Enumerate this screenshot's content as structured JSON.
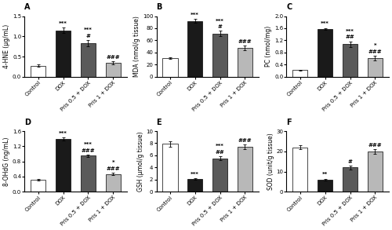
{
  "chart_data": [
    {
      "type": "bar",
      "title": "A",
      "ylabel": "4-HNE (μg/mL)",
      "categories": [
        "Control",
        "DOX",
        "Pris 0.5 + DOX",
        "Pris 1 + DOX"
      ],
      "values": [
        0.27,
        1.15,
        0.83,
        0.35
      ],
      "errors": [
        0.03,
        0.06,
        0.08,
        0.04
      ],
      "colors": [
        "#ffffff",
        "#1a1a1a",
        "#5a5a5a",
        "#b8b8b8"
      ],
      "ylim": [
        0,
        1.5
      ],
      "yticks": [
        0.0,
        0.5,
        1.0,
        1.5
      ],
      "annotations": [
        {
          "category": "DOX",
          "lines": [
            "***"
          ]
        },
        {
          "category": "Pris 0.5 + DOX",
          "lines": [
            "***",
            "#"
          ]
        },
        {
          "category": "Pris 1 + DOX",
          "lines": [
            "###"
          ]
        }
      ]
    },
    {
      "type": "bar",
      "title": "B",
      "ylabel": "MDA (nmol/g tissue)",
      "categories": [
        "Control",
        "DOX",
        "Pris 0.5 + DOX",
        "Pris 1 + DOX"
      ],
      "values": [
        31,
        92,
        71,
        48
      ],
      "errors": [
        1.5,
        3.5,
        4.5,
        4.0
      ],
      "colors": [
        "#ffffff",
        "#1a1a1a",
        "#5a5a5a",
        "#b8b8b8"
      ],
      "ylim": [
        0,
        100
      ],
      "yticks": [
        0,
        20,
        40,
        60,
        80,
        100
      ],
      "annotations": [
        {
          "category": "DOX",
          "lines": [
            "***"
          ]
        },
        {
          "category": "Pris 0.5 + DOX",
          "lines": [
            "***",
            "#"
          ]
        },
        {
          "category": "Pris 1 + DOX",
          "lines": [
            "###"
          ]
        }
      ]
    },
    {
      "type": "bar",
      "title": "C",
      "ylabel": "PC (nmol/mg)",
      "categories": [
        "Control",
        "DOX",
        "Pris 0.5 + DOX",
        "Pris 1 + DOX"
      ],
      "values": [
        0.22,
        1.58,
        1.08,
        0.62
      ],
      "errors": [
        0.02,
        0.03,
        0.09,
        0.07
      ],
      "colors": [
        "#ffffff",
        "#1a1a1a",
        "#5a5a5a",
        "#b8b8b8"
      ],
      "ylim": [
        0,
        2.0
      ],
      "yticks": [
        0.0,
        0.4,
        0.8,
        1.2,
        1.6,
        2.0
      ],
      "annotations": [
        {
          "category": "DOX",
          "lines": [
            "***"
          ]
        },
        {
          "category": "Pris 0.5 + DOX",
          "lines": [
            "***",
            "##"
          ]
        },
        {
          "category": "Pris 1 + DOX",
          "lines": [
            "*",
            "###"
          ]
        }
      ]
    },
    {
      "type": "bar",
      "title": "D",
      "ylabel": "8-OHdG (ng/mL)",
      "categories": [
        "Control",
        "DOX",
        "Pris 0.5 + DOX",
        "Pris 1 + DOX"
      ],
      "values": [
        0.32,
        1.4,
        0.95,
        0.47
      ],
      "errors": [
        0.02,
        0.04,
        0.03,
        0.03
      ],
      "colors": [
        "#ffffff",
        "#1a1a1a",
        "#5a5a5a",
        "#b8b8b8"
      ],
      "ylim": [
        0,
        1.6
      ],
      "yticks": [
        0.0,
        0.4,
        0.8,
        1.2,
        1.6
      ],
      "annotations": [
        {
          "category": "DOX",
          "lines": [
            "***"
          ]
        },
        {
          "category": "Pris 0.5 + DOX",
          "lines": [
            "***",
            "###"
          ]
        },
        {
          "category": "Pris 1 + DOX",
          "lines": [
            "*",
            "###"
          ]
        }
      ]
    },
    {
      "type": "bar",
      "title": "E",
      "ylabel": "GSH (μmol/g tissue)",
      "categories": [
        "Control",
        "DOX",
        "Pris 0.5 + DOX",
        "Pris 1 + DOX"
      ],
      "values": [
        7.9,
        2.1,
        5.5,
        7.4
      ],
      "errors": [
        0.45,
        0.15,
        0.35,
        0.4
      ],
      "colors": [
        "#ffffff",
        "#1a1a1a",
        "#5a5a5a",
        "#b8b8b8"
      ],
      "ylim": [
        0,
        10
      ],
      "yticks": [
        0,
        2,
        4,
        6,
        8,
        10
      ],
      "annotations": [
        {
          "category": "DOX",
          "lines": [
            "***"
          ]
        },
        {
          "category": "Pris 0.5 + DOX",
          "lines": [
            "***",
            "##"
          ]
        },
        {
          "category": "Pris 1 + DOX",
          "lines": [
            "###"
          ]
        }
      ]
    },
    {
      "type": "bar",
      "title": "F",
      "ylabel": "SOD (unit/g tissue)",
      "categories": [
        "Control",
        "DOX",
        "Pris 0.5 + DOX",
        "Pris 1 + DOX"
      ],
      "values": [
        22,
        6,
        12,
        20
      ],
      "errors": [
        1.0,
        0.5,
        1.0,
        1.2
      ],
      "colors": [
        "#ffffff",
        "#1a1a1a",
        "#5a5a5a",
        "#b8b8b8"
      ],
      "ylim": [
        0,
        30
      ],
      "yticks": [
        0,
        10,
        20,
        30
      ],
      "annotations": [
        {
          "category": "DOX",
          "lines": [
            "**"
          ]
        },
        {
          "category": "Pris 0.5 + DOX",
          "lines": [
            "#"
          ]
        },
        {
          "category": "Pris 1 + DOX",
          "lines": [
            "###"
          ]
        }
      ]
    }
  ]
}
